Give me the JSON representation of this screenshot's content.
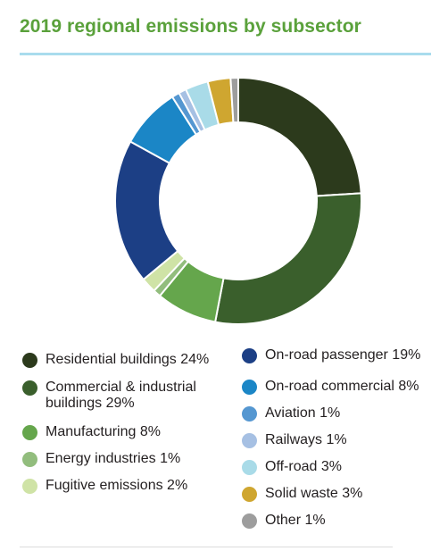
{
  "title": "2019 regional emissions by subsector",
  "chart_data": {
    "type": "pie",
    "donut": true,
    "title": "2019 regional emissions by subsector",
    "legend_placement": "bottom",
    "slices": [
      {
        "label": "Residential buildings 24%",
        "value": 24,
        "color": "#2c3a1c"
      },
      {
        "label": "Commercial & industrial\nbuildings 29%",
        "value": 29,
        "color": "#3a5f2c"
      },
      {
        "label": "Manufacturing 8%",
        "value": 8,
        "color": "#65a64c"
      },
      {
        "label": "Energy industries 1%",
        "value": 1,
        "color": "#92bd7d"
      },
      {
        "label": "Fugitive emissions 2%",
        "value": 2,
        "color": "#cfe3a6"
      },
      {
        "label": "On-road passenger 19%",
        "value": 19,
        "color": "#1c3f85"
      },
      {
        "label": "On-road commercial 8%",
        "value": 8,
        "color": "#1b86c6"
      },
      {
        "label": "Aviation 1%",
        "value": 1,
        "color": "#5597d1"
      },
      {
        "label": "Railways 1%",
        "value": 1,
        "color": "#a6c0e3"
      },
      {
        "label": "Off-road 3%",
        "value": 3,
        "color": "#a9dbe8"
      },
      {
        "label": "Solid waste 3%",
        "value": 3,
        "color": "#cfa630"
      },
      {
        "label": "Other 1%",
        "value": 1,
        "color": "#9d9d9d"
      }
    ]
  }
}
